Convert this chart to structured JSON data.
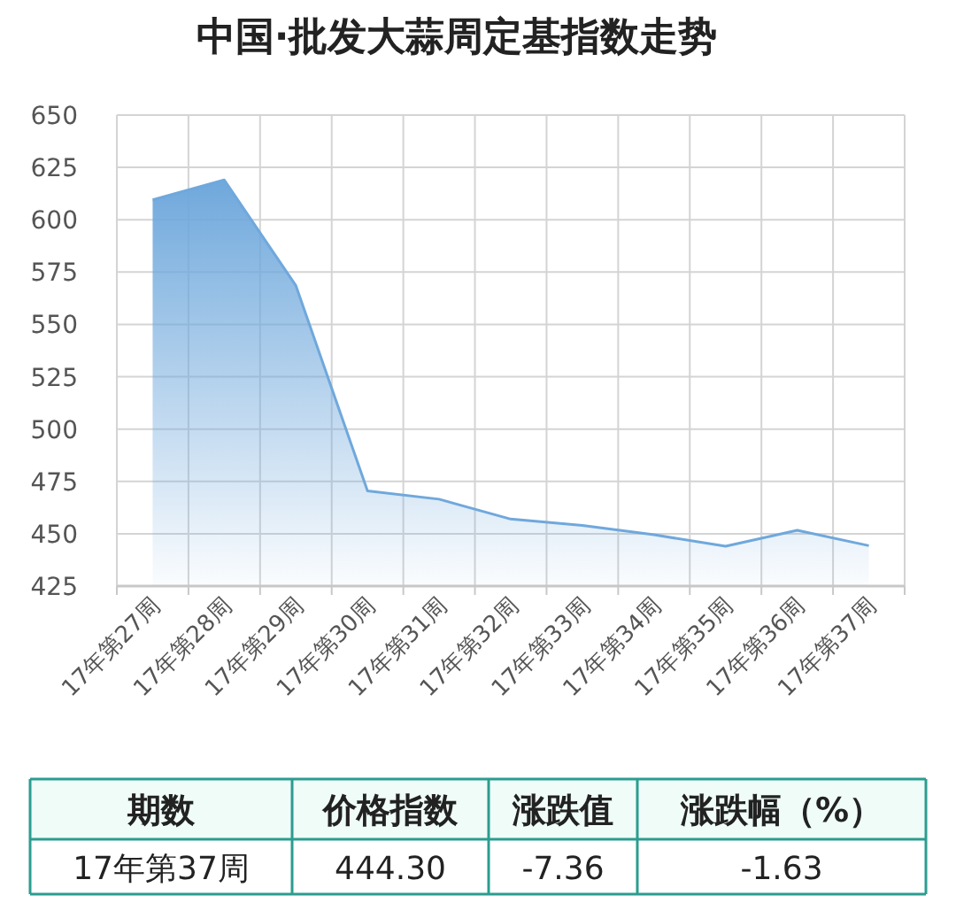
{
  "chart_data": {
    "type": "area",
    "title": "中国·批发大蒜周定基指数走势",
    "categories": [
      "17年第27周",
      "17年第28周",
      "17年第29周",
      "17年第30周",
      "17年第31周",
      "17年第32周",
      "17年第33周",
      "17年第34周",
      "17年第35周",
      "17年第36周",
      "17年第37周"
    ],
    "series": [
      {
        "color": "#6fa8dc",
        "values": [
          609.5,
          619,
          568.5,
          470.5,
          466.5,
          457,
          454,
          449.5,
          444,
          451.66,
          444.3
        ]
      }
    ],
    "ylim": [
      425,
      650
    ],
    "yticks": [
      425,
      450,
      475,
      500,
      525,
      550,
      575,
      600,
      625,
      650
    ],
    "grid": true,
    "annotations": [
      "期数",
      "价格指数",
      "涨跌值",
      "涨跌幅（%）",
      "17年第37周",
      "444.30",
      "-7.36",
      "-1.63"
    ]
  }
}
